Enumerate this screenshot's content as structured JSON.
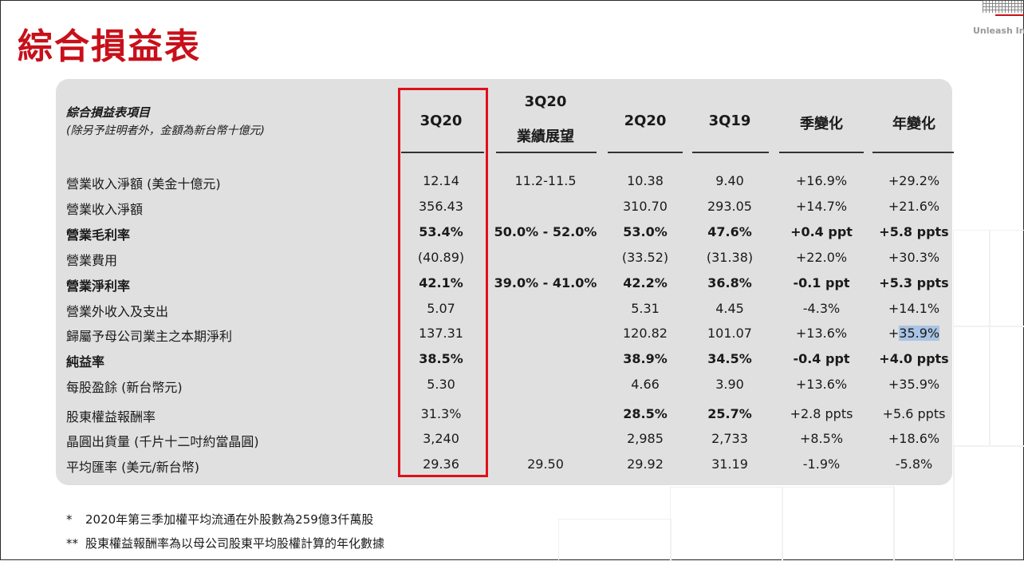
{
  "title": "綜合損益表",
  "brand": "Unleash Inn",
  "header": {
    "label_line1": "綜合損益表項目",
    "label_line2": "(除另予註明者外，金額為新台幣十億元)",
    "col_3q20": "3Q20",
    "col_guidance_line1": "3Q20",
    "col_guidance_line2": "業績展望",
    "col_2q20": "2Q20",
    "col_3q19": "3Q19",
    "col_qoq": "季變化",
    "col_yoy": "年變化"
  },
  "rows": [
    {
      "label": "營業收入淨額 (美金十億元)",
      "bold": false,
      "v3q20": "12.14",
      "guidance": "11.2-11.5",
      "v2q20": "10.38",
      "v3q19": "9.40",
      "qoq": "+16.9%",
      "yoy": "+29.2%"
    },
    {
      "label": "營業收入淨額",
      "bold": false,
      "v3q20": "356.43",
      "guidance": "",
      "v2q20": "310.70",
      "v3q19": "293.05",
      "qoq": "+14.7%",
      "yoy": "+21.6%"
    },
    {
      "label": "營業毛利率",
      "bold": true,
      "v3q20": "53.4%",
      "guidance": "50.0% - 52.0%",
      "v2q20": "53.0%",
      "v3q19": "47.6%",
      "qoq": "+0.4 ppt",
      "yoy": "+5.8 ppts"
    },
    {
      "label": "營業費用",
      "bold": false,
      "v3q20": "(40.89)",
      "guidance": "",
      "v2q20": "(33.52)",
      "v3q19": "(31.38)",
      "qoq": "+22.0%",
      "yoy": "+30.3%"
    },
    {
      "label": "營業淨利率",
      "bold": true,
      "v3q20": "42.1%",
      "guidance": "39.0% - 41.0%",
      "v2q20": "42.2%",
      "v3q19": "36.8%",
      "qoq": "-0.1 ppt",
      "yoy": "+5.3 ppts"
    },
    {
      "label": "營業外收入及支出",
      "bold": false,
      "v3q20": "5.07",
      "guidance": "",
      "v2q20": "5.31",
      "v3q19": "4.45",
      "qoq": "-4.3%",
      "yoy": "+14.1%"
    },
    {
      "label": "歸屬予母公司業主之本期淨利",
      "bold": false,
      "v3q20": "137.31",
      "guidance": "",
      "v2q20": "120.82",
      "v3q19": "101.07",
      "qoq": "+13.6%",
      "yoy_prefix": "+",
      "yoy_hl": "35.9%"
    },
    {
      "label": "純益率",
      "bold": true,
      "v3q20": "38.5%",
      "guidance": "",
      "v2q20": "38.9%",
      "v3q19": "34.5%",
      "qoq": "-0.4 ppt",
      "yoy": "+4.0 ppts"
    },
    {
      "label": "每股盈餘 (新台幣元)",
      "bold": false,
      "v3q20": "5.30",
      "guidance": "",
      "v2q20": "4.66",
      "v3q19": "3.90",
      "qoq": "+13.6%",
      "yoy": "+35.9%"
    },
    {
      "label": "股東權益報酬率",
      "bold": false,
      "v3q20": "31.3%",
      "guidance": "",
      "v2q20": "28.5%",
      "v3q19": "25.7%",
      "qoq": "+2.8 ppts",
      "yoy": "+5.6 ppts",
      "bold_hist": true
    },
    {
      "label": "晶圓出貨量 (千片十二吋約當晶圓)",
      "bold": false,
      "v3q20": "3,240",
      "guidance": "",
      "v2q20": "2,985",
      "v3q19": "2,733",
      "qoq": "+8.5%",
      "yoy": "+18.6%"
    },
    {
      "label": "平均匯率 (美元/新台幣)",
      "bold": false,
      "v3q20": "29.36",
      "guidance": "29.50",
      "v2q20": "29.92",
      "v3q19": "31.19",
      "qoq": "-1.9%",
      "yoy": "-5.8%"
    }
  ],
  "footnotes": [
    {
      "mark": "*",
      "text": "2020年第三季加權平均流通在外股數為259億3仟萬股"
    },
    {
      "mark": "**",
      "text": "股東權益報酬率為以母公司股東平均股權計算的年化數據"
    }
  ]
}
